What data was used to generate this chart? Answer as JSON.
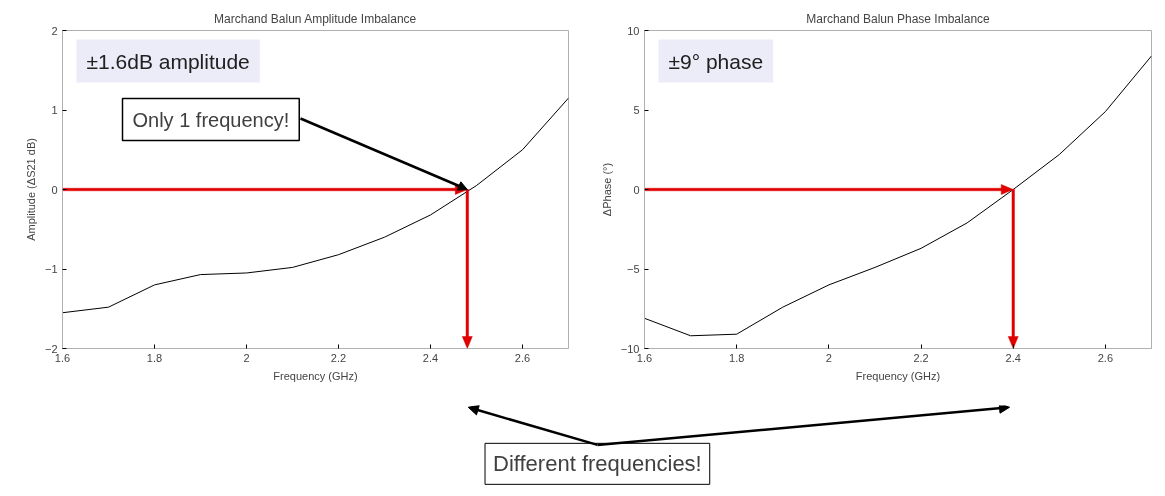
{
  "chart_data": [
    {
      "type": "line",
      "title": "Marchand Balun Amplitude Imbalance",
      "xlabel": "Frequency (GHz)",
      "ylabel": "Amplitude (ΔS21 dB)",
      "x": [
        1.6,
        1.7,
        1.8,
        1.9,
        2.0,
        2.1,
        2.2,
        2.3,
        2.4,
        2.5,
        2.6,
        2.7
      ],
      "series": [
        {
          "color": "#000000",
          "values": [
            -1.55,
            -1.48,
            -1.2,
            -1.07,
            -1.05,
            -0.98,
            -0.82,
            -0.6,
            -0.32,
            0.05,
            0.5,
            1.15
          ]
        }
      ],
      "xlim": [
        1.6,
        2.7
      ],
      "ylim": [
        -2,
        2
      ],
      "xticks": [
        1.6,
        1.8,
        2,
        2.2,
        2.4,
        2.6
      ],
      "yticks": [
        -2,
        -1,
        0,
        1,
        2
      ],
      "ref_lines": [
        {
          "axis": "y",
          "value": 0,
          "color": "#e00000"
        },
        {
          "axis": "x",
          "value": 2.48,
          "color": "#e00000"
        }
      ],
      "annotations": [
        "±1.6dB amplitude",
        {
          "text": "Only 1 frequency!",
          "x": 2.48,
          "y": 0
        },
        "Different frequencies!"
      ]
    },
    {
      "type": "line",
      "title": "Marchand Balun Phase Imbalance",
      "xlabel": "Frequency (GHz)",
      "ylabel": "ΔPhase (°)",
      "x": [
        1.6,
        1.7,
        1.8,
        1.9,
        2.0,
        2.1,
        2.2,
        2.3,
        2.4,
        2.5,
        2.6,
        2.7
      ],
      "series": [
        {
          "color": "#000000",
          "values": [
            -8.1,
            -9.2,
            -9.1,
            -7.4,
            -6.0,
            -4.9,
            -3.7,
            -2.1,
            0.0,
            2.2,
            4.9,
            8.4
          ]
        }
      ],
      "xlim": [
        1.6,
        2.7
      ],
      "ylim": [
        -10,
        10
      ],
      "xticks": [
        1.6,
        1.8,
        2,
        2.2,
        2.4,
        2.6
      ],
      "yticks": [
        -10,
        -5,
        0,
        5,
        10
      ],
      "ref_lines": [
        {
          "axis": "y",
          "value": 0,
          "color": "#e00000"
        },
        {
          "axis": "x",
          "value": 2.4,
          "color": "#e00000"
        }
      ],
      "annotations": [
        "±9° phase"
      ]
    }
  ]
}
